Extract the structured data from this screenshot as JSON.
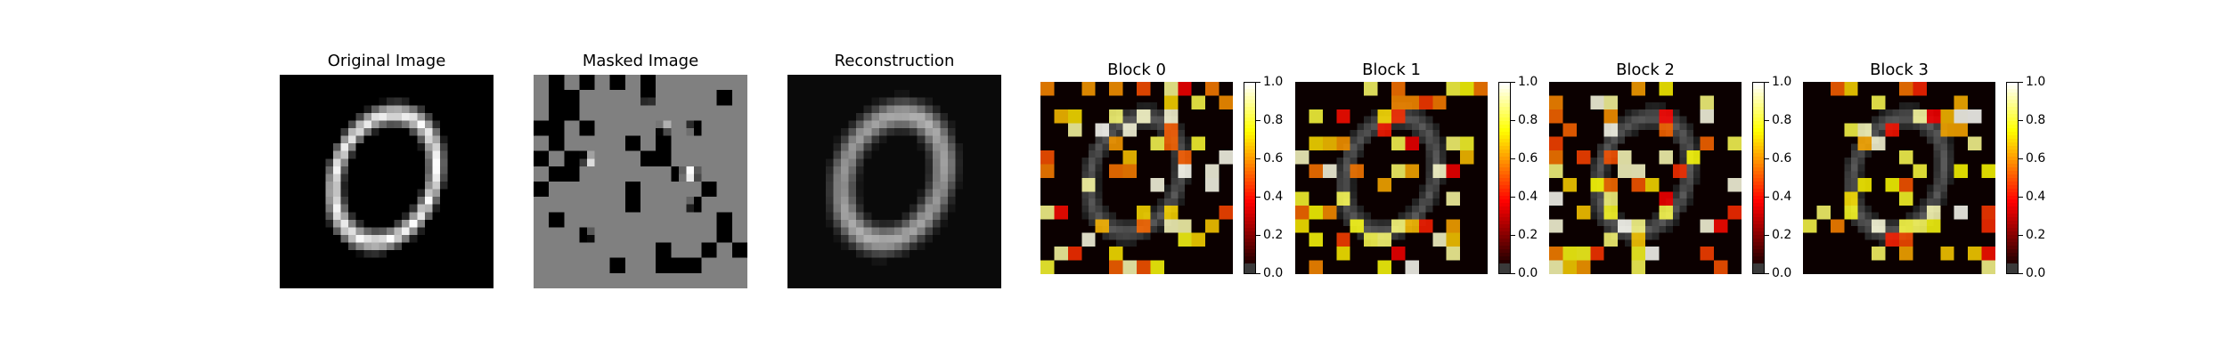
{
  "panels": [
    {
      "title": "Original Image"
    },
    {
      "title": "Masked Image"
    },
    {
      "title": "Reconstruction"
    },
    {
      "title": "Block 0"
    },
    {
      "title": "Block 1"
    },
    {
      "title": "Block 2"
    },
    {
      "title": "Block 3"
    }
  ],
  "colorbar": {
    "ticks": [
      "1.0",
      "0.8",
      "0.6",
      "0.4",
      "0.2",
      "0.0"
    ],
    "range": [
      0,
      1
    ],
    "colormap": "hot",
    "alpha_underlay": "digit"
  },
  "colors": {
    "background": "#ffffff",
    "mask_gray": "#808080",
    "hot_dark": "#0b0000",
    "hot_red": "#e02000",
    "hot_orange": "#ff8a00",
    "hot_yellow": "#ffff60"
  },
  "image": {
    "grid": 28,
    "patch_grid": 14
  }
}
